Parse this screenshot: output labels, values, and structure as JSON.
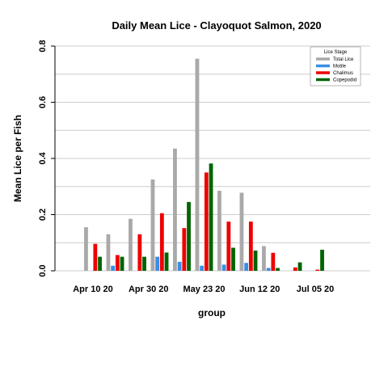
{
  "chart_data": {
    "type": "bar",
    "title": "Daily Mean Lice - Clayoquot Salmon, 2020",
    "xlabel": "group",
    "ylabel": "Mean Lice per Fish",
    "ylim": [
      0,
      0.8
    ],
    "yticks": [
      "0.0",
      "0.2",
      "0.4",
      "0.6",
      "0.8"
    ],
    "xtick_labels": [
      {
        "label": "Apr 10 20",
        "group_index": 0
      },
      {
        "label": "Apr 30 20",
        "group_index": 2.5
      },
      {
        "label": "May 23 20",
        "group_index": 5
      },
      {
        "label": "Jun 12 20",
        "group_index": 7.5
      },
      {
        "label": "Jul 05 20",
        "group_index": 10
      }
    ],
    "grid": true,
    "legend": {
      "title": "Lice Stage",
      "position": "top-right"
    },
    "group_count": 11,
    "series": [
      {
        "name": "Total Lice",
        "color": "#a9a9a9",
        "values": [
          0.155,
          0.13,
          0.185,
          0.325,
          0.435,
          0.755,
          0.285,
          0.278,
          0.088,
          0.0,
          0.0
        ]
      },
      {
        "name": "Motile",
        "color": "#3a8ee6",
        "values": [
          0.0,
          0.018,
          0.0,
          0.05,
          0.032,
          0.018,
          0.022,
          0.028,
          0.01,
          0.0,
          0.0
        ]
      },
      {
        "name": "Chalimus",
        "color": "#ee0000",
        "values": [
          0.096,
          0.056,
          0.13,
          0.205,
          0.152,
          0.35,
          0.175,
          0.175,
          0.064,
          0.012,
          0.004
        ]
      },
      {
        "name": "Copepodid",
        "color": "#006400",
        "values": [
          0.05,
          0.05,
          0.05,
          0.065,
          0.245,
          0.382,
          0.082,
          0.072,
          0.01,
          0.03,
          0.075
        ]
      }
    ]
  }
}
